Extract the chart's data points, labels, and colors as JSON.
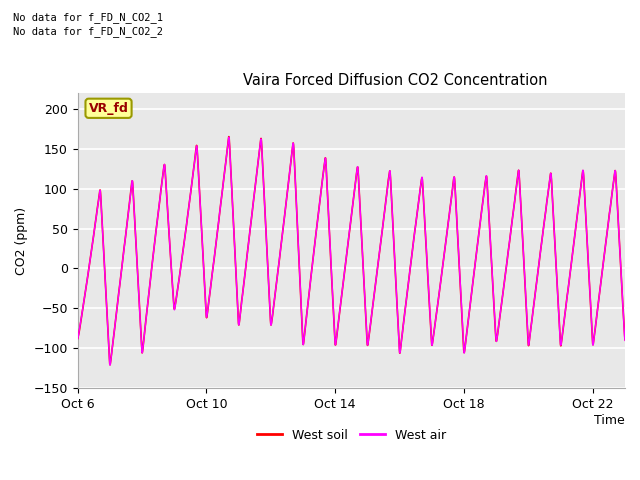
{
  "title": "Vaira Forced Diffusion CO2 Concentration",
  "xlabel": "Time",
  "ylabel": "CO2 (ppm)",
  "ylim": [
    -150,
    220
  ],
  "yticks": [
    -150,
    -100,
    -50,
    0,
    50,
    100,
    150,
    200
  ],
  "xlim": [
    0,
    17
  ],
  "xtick_labels": [
    "Oct 6",
    "Oct 10",
    "Oct 14",
    "Oct 18",
    "Oct 22"
  ],
  "xtick_positions": [
    0,
    4,
    8,
    12,
    16
  ],
  "plot_bg_color": "#e8e8e8",
  "outer_bg": "#ffffff",
  "grid_color": "#ffffff",
  "annotation_text1": "No data for f_FD_N_CO2_1",
  "annotation_text2": "No data for f_FD_N_CO2_2",
  "badge_text": "VR_fd",
  "badge_bg": "#ffff99",
  "badge_border": "#999900",
  "badge_text_color": "#990000",
  "legend_entries": [
    "West soil",
    "West air"
  ],
  "line_color_soil": "#ff0000",
  "line_color_air": "#ff00ff",
  "figsize": [
    6.4,
    4.8
  ],
  "dpi": 100
}
